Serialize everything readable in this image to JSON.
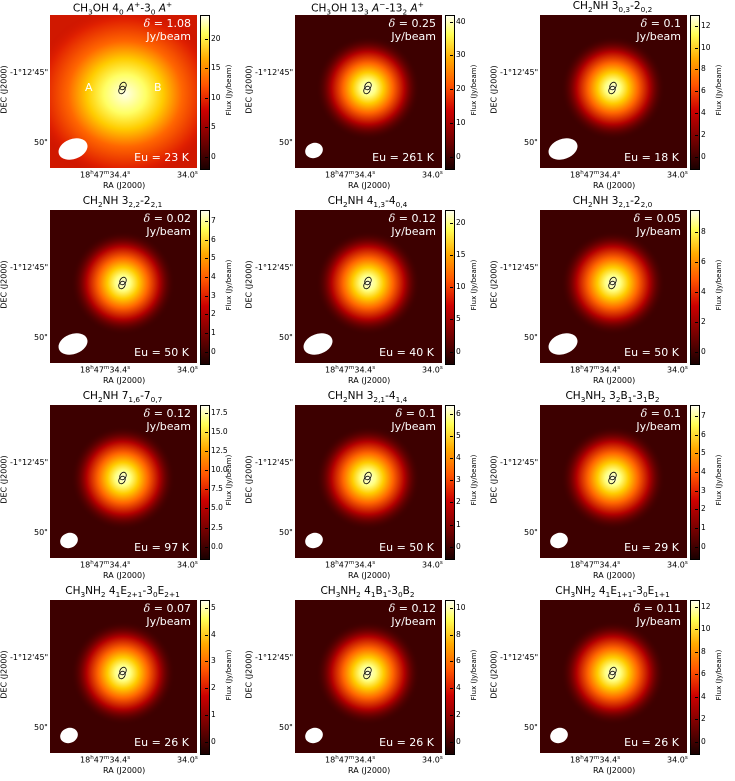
{
  "axes": {
    "dec_tick_top": "-1°12'45\"",
    "dec_tick_bottom": "50\"",
    "dec_label": "DEC (J2000)",
    "ra_tick_left_html": "18<sup>h</sup>47<sup>m</sup>34.4<sup>s</sup>",
    "ra_tick_right_html": "34.0<sup>s</sup>",
    "ra_label": "RA (J2000)",
    "colorbar_label": "Flux (Jy/beam)",
    "delta_unit": "Jy/beam"
  },
  "colors": {
    "background_map": "#3d0000",
    "peak": "#ffffe6",
    "mid": "#ff9900",
    "low": "#b30000"
  },
  "panels": [
    {
      "title_html": "CH<sub>3</sub>OH 4<sub>0</sub> <i>A</i><sup>+</sup>-3<sub>0</sub> <i>A</i><sup>+</sup>",
      "delta": "δ = 1.08",
      "eu": "Eu = 23 K",
      "ticks": [
        "20",
        "15",
        "10",
        "5",
        "0"
      ],
      "vmax": 24,
      "extended": true,
      "labels": {
        "a": "A",
        "b": "B"
      },
      "beam": "large"
    },
    {
      "title_html": "CH<sub>3</sub>OH 13<sub>3</sub> <i>A</i><sup>−</sup>-13<sub>2</sub> <i>A</i><sup>+</sup>",
      "delta": "δ = 0.25",
      "eu": "Eu = 261 K",
      "ticks": [
        "40",
        "30",
        "20",
        "10",
        "0"
      ],
      "vmax": 42,
      "extended": false,
      "beam": "small"
    },
    {
      "title_html": "CH<sub>2</sub>NH 3<sub>0,3</sub>-2<sub>0,2</sub>",
      "delta": "δ = 0.1",
      "eu": "Eu = 18 K",
      "ticks": [
        "12",
        "10",
        "8",
        "6",
        "4",
        "2",
        "0"
      ],
      "vmax": 13,
      "extended": false,
      "beam": "large"
    },
    {
      "title_html": "CH<sub>2</sub>NH 3<sub>2,2</sub>-2<sub>2,1</sub>",
      "delta": "δ = 0.02",
      "eu": "Eu = 50 K",
      "ticks": [
        "7",
        "6",
        "5",
        "4",
        "3",
        "2",
        "1",
        "0"
      ],
      "vmax": 7.6,
      "extended": false,
      "beam": "large"
    },
    {
      "title_html": "CH<sub>2</sub>NH 4<sub>1,3</sub>-4<sub>0,4</sub>",
      "delta": "δ = 0.12",
      "eu": "Eu = 40 K",
      "ticks": [
        "20",
        "15",
        "10",
        "5",
        "0"
      ],
      "vmax": 22,
      "extended": false,
      "beam": "large"
    },
    {
      "title_html": "CH<sub>2</sub>NH 3<sub>2,1</sub>-2<sub>2,0</sub>",
      "delta": "δ = 0.05",
      "eu": "Eu = 50 K",
      "ticks": [
        "8",
        "6",
        "4",
        "2",
        "0"
      ],
      "vmax": 9.5,
      "extended": false,
      "beam": "large"
    },
    {
      "title_html": "CH<sub>2</sub>NH 7<sub>1,6</sub>-7<sub>0,7</sub>",
      "delta": "δ = 0.12",
      "eu": "Eu = 97 K",
      "ticks": [
        "17.5",
        "15.0",
        "12.5",
        "10.0",
        "7.5",
        "5.0",
        "2.5",
        "0.0"
      ],
      "vmax": 18.5,
      "extended": false,
      "beam": "small"
    },
    {
      "title_html": "CH<sub>2</sub>NH 3<sub>2,1</sub>-4<sub>1,4</sub>",
      "delta": "δ = 0.1",
      "eu": "Eu = 50 K",
      "ticks": [
        "6",
        "5",
        "4",
        "3",
        "2",
        "1",
        "0"
      ],
      "vmax": 6.4,
      "extended": false,
      "beam": "small"
    },
    {
      "title_html": "CH<sub>3</sub>NH<sub>2</sub> 3<sub>2</sub>B<sub>1</sub>-3<sub>1</sub>B<sub>2</sub>",
      "delta": "δ = 0.1",
      "eu": "Eu = 29 K",
      "ticks": [
        "7",
        "6",
        "5",
        "4",
        "3",
        "2",
        "1",
        "0"
      ],
      "vmax": 7.6,
      "extended": false,
      "beam": "small"
    },
    {
      "title_html": "CH<sub>3</sub>NH<sub>2</sub> 4<sub>1</sub>E<sub>2+1</sub>-3<sub>0</sub>E<sub>2+1</sub>",
      "delta": "δ = 0.07",
      "eu": "Eu = 26 K",
      "ticks": [
        "5",
        "4",
        "3",
        "2",
        "1",
        "0"
      ],
      "vmax": 5.3,
      "extended": false,
      "beam": "small"
    },
    {
      "title_html": "CH<sub>3</sub>NH<sub>2</sub> 4<sub>1</sub>B<sub>1</sub>-3<sub>0</sub>B<sub>2</sub>",
      "delta": "δ = 0.12",
      "eu": "Eu = 26 K",
      "ticks": [
        "10",
        "8",
        "6",
        "4",
        "2",
        "0"
      ],
      "vmax": 10.6,
      "extended": false,
      "beam": "small"
    },
    {
      "title_html": "CH<sub>3</sub>NH<sub>2</sub> 4<sub>1</sub>E<sub>1+1</sub>-3<sub>0</sub>E<sub>1+1</sub>",
      "delta": "δ = 0.11",
      "eu": "Eu = 26 K",
      "ticks": [
        "12",
        "10",
        "8",
        "6",
        "4",
        "2",
        "0"
      ],
      "vmax": 12.6,
      "extended": false,
      "beam": "small"
    }
  ]
}
